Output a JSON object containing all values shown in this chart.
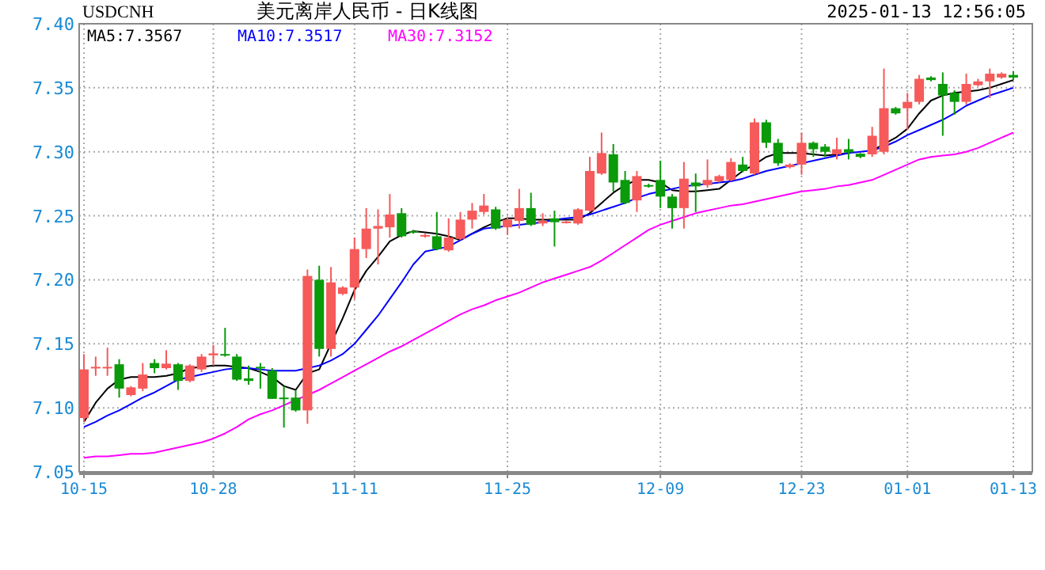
{
  "chart_data": {
    "type": "candlestick",
    "title": "美元离岸人民币 - 日K线图",
    "subtitle": "USDCNH",
    "annotations": [
      "2025-01-13 12:56:05"
    ],
    "categories": [
      "10-15",
      null,
      null,
      null,
      null,
      null,
      null,
      null,
      null,
      null,
      null,
      "10-28",
      null,
      null,
      null,
      null,
      null,
      null,
      null,
      null,
      null,
      null,
      null,
      "11-11",
      null,
      null,
      null,
      null,
      null,
      null,
      null,
      null,
      null,
      null,
      null,
      null,
      "11-25",
      null,
      null,
      null,
      null,
      null,
      null,
      null,
      null,
      null,
      null,
      null,
      null,
      "12-09",
      null,
      null,
      null,
      null,
      null,
      null,
      null,
      null,
      null,
      null,
      null,
      "12-23",
      null,
      null,
      null,
      null,
      null,
      null,
      null,
      null,
      "01-01",
      null,
      null,
      null,
      null,
      null,
      null,
      null,
      null,
      "01-13"
    ],
    "ohlc": [
      [
        7.092,
        7.142,
        7.089,
        7.13
      ],
      [
        7.131,
        7.14,
        7.125,
        7.132
      ],
      [
        7.131,
        7.147,
        7.125,
        7.132
      ],
      [
        7.134,
        7.138,
        7.108,
        7.115
      ],
      [
        7.11,
        7.117,
        7.109,
        7.116
      ],
      [
        7.115,
        7.135,
        7.113,
        7.126
      ],
      [
        7.135,
        7.138,
        7.127,
        7.131
      ],
      [
        7.131,
        7.145,
        7.13,
        7.1345
      ],
      [
        7.134,
        7.135,
        7.114,
        7.121
      ],
      [
        7.121,
        7.134,
        7.12,
        7.133
      ],
      [
        7.13,
        7.142,
        7.128,
        7.14
      ],
      [
        7.141,
        7.149,
        7.133,
        7.1425
      ],
      [
        7.142,
        7.1625,
        7.14,
        7.141
      ],
      [
        7.14,
        7.142,
        7.121,
        7.122
      ],
      [
        7.123,
        7.133,
        7.118,
        7.121
      ],
      [
        7.132,
        7.135,
        7.115,
        7.131
      ],
      [
        7.129,
        7.131,
        7.107,
        7.107
      ],
      [
        7.108,
        7.117,
        7.0846,
        7.107
      ],
      [
        7.108,
        7.114,
        7.097,
        7.098
      ],
      [
        7.098,
        7.208,
        7.0875,
        7.203
      ],
      [
        7.2,
        7.211,
        7.14,
        7.146
      ],
      [
        7.146,
        7.21,
        7.14,
        7.198
      ],
      [
        7.189,
        7.195,
        7.188,
        7.194
      ],
      [
        7.194,
        7.233,
        7.185,
        7.224
      ],
      [
        7.224,
        7.256,
        7.217,
        7.24
      ],
      [
        7.24,
        7.255,
        7.212,
        7.242
      ],
      [
        7.241,
        7.267,
        7.233,
        7.251
      ],
      [
        7.252,
        7.256,
        7.233,
        7.234
      ],
      [
        7.238,
        7.239,
        7.236,
        7.237
      ],
      [
        7.234,
        7.236,
        7.233,
        7.235
      ],
      [
        7.234,
        7.253,
        7.223,
        7.224
      ],
      [
        7.223,
        7.248,
        7.222,
        7.233
      ],
      [
        7.232,
        7.253,
        7.231,
        7.247
      ],
      [
        7.247,
        7.26,
        7.24,
        7.254
      ],
      [
        7.253,
        7.267,
        7.251,
        7.258
      ],
      [
        7.255,
        7.257,
        7.239,
        7.24
      ],
      [
        7.241,
        7.249,
        7.235,
        7.247
      ],
      [
        7.246,
        7.271,
        7.24,
        7.256
      ],
      [
        7.256,
        7.268,
        7.242,
        7.243
      ],
      [
        7.244,
        7.252,
        7.242,
        7.246
      ],
      [
        7.248,
        7.254,
        7.226,
        7.245
      ],
      [
        7.245,
        7.246,
        7.244,
        7.2455
      ],
      [
        7.244,
        7.256,
        7.243,
        7.255
      ],
      [
        7.254,
        7.296,
        7.253,
        7.285
      ],
      [
        7.283,
        7.315,
        7.282,
        7.299
      ],
      [
        7.298,
        7.306,
        7.269,
        7.276
      ],
      [
        7.278,
        7.285,
        7.259,
        7.26
      ],
      [
        7.262,
        7.285,
        7.253,
        7.281
      ],
      [
        7.274,
        7.275,
        7.272,
        7.273
      ],
      [
        7.278,
        7.293,
        7.256,
        7.265
      ],
      [
        7.265,
        7.267,
        7.24,
        7.256
      ],
      [
        7.256,
        7.292,
        7.24,
        7.279
      ],
      [
        7.276,
        7.283,
        7.253,
        7.273
      ],
      [
        7.274,
        7.294,
        7.272,
        7.278
      ],
      [
        7.277,
        7.282,
        7.276,
        7.281
      ],
      [
        7.278,
        7.295,
        7.277,
        7.292
      ],
      [
        7.29,
        7.296,
        7.284,
        7.285
      ],
      [
        7.283,
        7.326,
        7.282,
        7.323
      ],
      [
        7.323,
        7.325,
        7.303,
        7.307
      ],
      [
        7.307,
        7.31,
        7.289,
        7.291
      ],
      [
        7.288,
        7.291,
        7.287,
        7.29
      ],
      [
        7.29,
        7.315,
        7.282,
        7.307
      ],
      [
        7.307,
        7.308,
        7.296,
        7.302
      ],
      [
        7.304,
        7.306,
        7.296,
        7.3
      ],
      [
        7.298,
        7.311,
        7.294,
        7.302
      ],
      [
        7.302,
        7.31,
        7.294,
        7.2995
      ],
      [
        7.2985,
        7.299,
        7.295,
        7.296
      ],
      [
        7.298,
        7.3195,
        7.296,
        7.3125
      ],
      [
        7.3,
        7.365,
        7.298,
        7.334
      ],
      [
        7.334,
        7.335,
        7.329,
        7.33
      ],
      [
        7.334,
        7.346,
        7.317,
        7.339
      ],
      [
        7.339,
        7.36,
        7.337,
        7.357
      ],
      [
        7.358,
        7.359,
        7.355,
        7.356
      ],
      [
        7.353,
        7.362,
        7.3125,
        7.344
      ],
      [
        7.346,
        7.348,
        7.329,
        7.339
      ],
      [
        7.339,
        7.361,
        7.337,
        7.353
      ],
      [
        7.352,
        7.357,
        7.351,
        7.355
      ],
      [
        7.355,
        7.365,
        7.342,
        7.361
      ],
      [
        7.358,
        7.362,
        7.357,
        7.361
      ],
      [
        7.36,
        7.363,
        7.356,
        7.358
      ]
    ],
    "series": [
      {
        "type": "line",
        "name": "MA5:7.3567",
        "color": "#000000",
        "values": [
          7.089,
          7.104,
          7.115,
          7.122,
          7.124,
          7.124,
          7.124,
          7.125,
          7.127,
          7.131,
          7.132,
          7.133,
          7.133,
          7.132,
          7.131,
          7.128,
          7.124,
          7.117,
          7.114,
          7.127,
          7.13,
          7.15,
          7.17,
          7.192,
          7.207,
          7.218,
          7.23,
          7.235,
          7.238,
          7.237,
          7.236,
          7.234,
          7.231,
          7.236,
          7.241,
          7.245,
          7.248,
          7.248,
          7.247,
          7.247,
          7.247,
          7.247,
          7.247,
          7.252,
          7.26,
          7.268,
          7.274,
          7.278,
          7.278,
          7.276,
          7.27,
          7.269,
          7.269,
          7.27,
          7.271,
          7.278,
          7.285,
          7.29,
          7.296,
          7.299,
          7.299,
          7.299,
          7.298,
          7.297,
          7.298,
          7.299,
          null,
          7.301,
          7.306,
          7.311,
          7.318,
          7.33,
          7.34,
          7.344,
          7.346,
          7.347,
          7.348,
          7.35,
          7.353,
          7.356
        ]
      },
      {
        "type": "line",
        "name": "MA10:7.3517",
        "color": "#0000ff",
        "values": [
          7.085,
          7.089,
          7.094,
          7.098,
          7.103,
          7.108,
          7.112,
          7.117,
          7.122,
          7.124,
          7.126,
          7.128,
          7.13,
          7.131,
          7.131,
          7.13,
          7.129,
          7.129,
          7.129,
          7.131,
          7.133,
          7.137,
          7.142,
          7.15,
          7.161,
          7.172,
          7.185,
          7.198,
          7.212,
          7.222,
          7.224,
          7.226,
          7.231,
          7.236,
          7.24,
          7.241,
          7.242,
          7.243,
          7.244,
          7.245,
          7.247,
          7.248,
          7.249,
          7.251,
          7.254,
          7.257,
          7.26,
          7.264,
          7.267,
          7.269,
          7.271,
          7.273,
          7.274,
          7.275,
          7.276,
          7.277,
          7.279,
          7.282,
          7.285,
          7.287,
          7.289,
          7.291,
          7.293,
          7.295,
          7.297,
          7.299,
          7.3,
          7.301,
          7.304,
          7.308,
          7.313,
          7.317,
          7.321,
          7.325,
          7.33,
          7.336,
          7.34,
          7.344,
          7.347,
          7.35
        ]
      },
      {
        "type": "line",
        "name": "MA30:7.3152",
        "color": "#ff00ff",
        "values": [
          7.061,
          7.062,
          7.062,
          7.063,
          7.064,
          7.064,
          7.065,
          7.067,
          7.069,
          7.071,
          7.073,
          7.076,
          7.08,
          7.085,
          7.091,
          7.095,
          7.098,
          7.102,
          7.106,
          7.11,
          7.114,
          7.119,
          7.124,
          7.129,
          7.134,
          7.139,
          7.144,
          7.148,
          7.153,
          7.158,
          7.163,
          7.168,
          7.173,
          7.177,
          7.18,
          7.184,
          7.187,
          7.19,
          7.194,
          7.198,
          7.201,
          7.204,
          7.207,
          7.21,
          7.215,
          7.221,
          7.227,
          7.233,
          7.239,
          7.243,
          7.246,
          7.249,
          7.252,
          7.254,
          7.256,
          7.258,
          7.259,
          7.261,
          7.263,
          7.265,
          7.267,
          7.269,
          7.27,
          7.271,
          7.273,
          7.274,
          7.276,
          7.278,
          7.282,
          7.286,
          7.29,
          7.294,
          7.296,
          7.297,
          7.298,
          7.3,
          7.303,
          7.307,
          7.311,
          7.315
        ]
      }
    ],
    "ylim": [
      7.05,
      7.4
    ],
    "yticks": [
      {
        "value": 7.05,
        "label": "7.05"
      },
      {
        "value": 7.1,
        "label": "7.10"
      },
      {
        "value": 7.15,
        "label": "7.15"
      },
      {
        "value": 7.2,
        "label": "7.20"
      },
      {
        "value": 7.25,
        "label": "7.25"
      },
      {
        "value": 7.3,
        "label": "7.30"
      },
      {
        "value": 7.35,
        "label": "7.35"
      },
      {
        "value": 7.4,
        "label": "7.40"
      }
    ],
    "grid": true,
    "legend": "top left"
  }
}
